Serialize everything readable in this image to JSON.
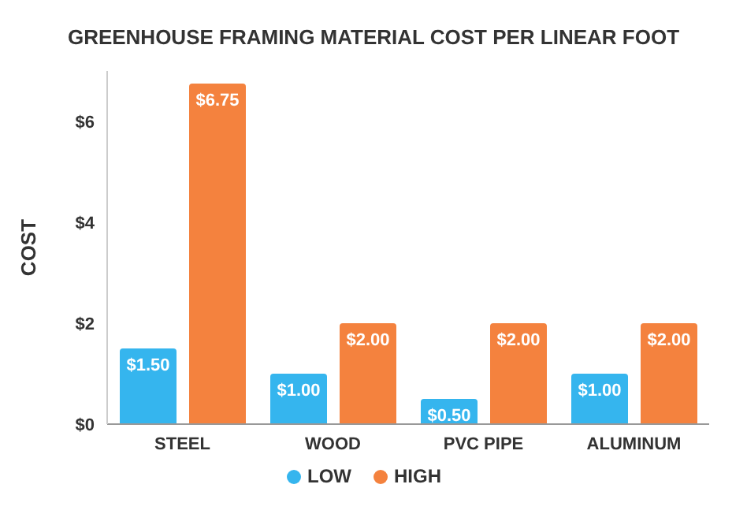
{
  "chart_data": {
    "type": "bar",
    "title": "GREENHOUSE FRAMING MATERIAL COST PER LINEAR FOOT",
    "ylabel": "COST",
    "categories": [
      "STEEL",
      "WOOD",
      "PVC PIPE",
      "ALUMINUM"
    ],
    "series": [
      {
        "name": "LOW",
        "color": "#35b5ee",
        "values": [
          1.5,
          1,
          0.5,
          1
        ],
        "value_labels": [
          "$1.50",
          "$1.00",
          "$0.50",
          "$1.00"
        ]
      },
      {
        "name": "HIGH",
        "color": "#f4823e",
        "values": [
          6.75,
          2,
          2,
          2
        ],
        "value_labels": [
          "$6.75",
          "$2.00",
          "$2.00",
          "$2.00"
        ]
      }
    ],
    "ylim": [
      0,
      7
    ],
    "yticks": [
      {
        "value": 0,
        "label": "$0"
      },
      {
        "value": 2,
        "label": "$2"
      },
      {
        "value": 4,
        "label": "$4"
      },
      {
        "value": 6,
        "label": "$6"
      }
    ],
    "grid": false,
    "legend": "bottom"
  }
}
